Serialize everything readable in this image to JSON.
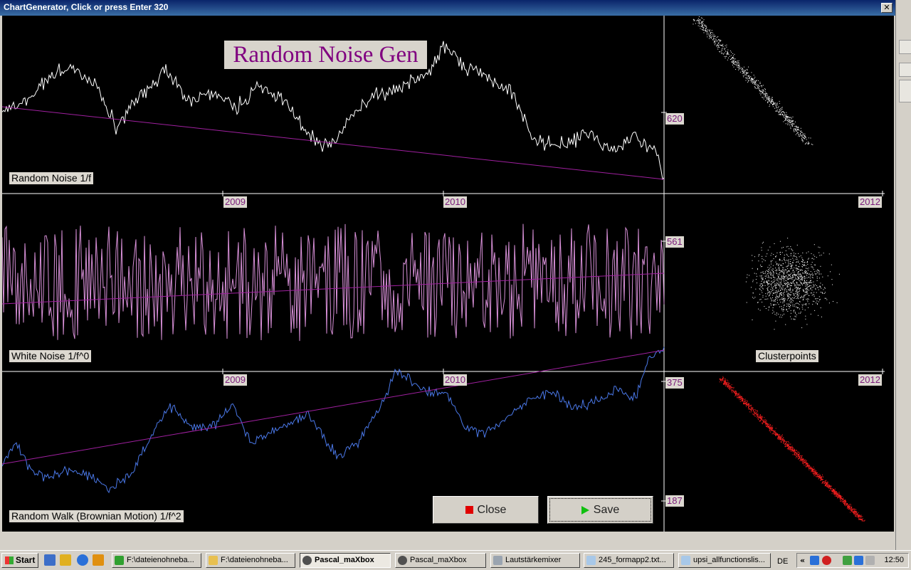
{
  "window": {
    "title": "ChartGenerator, Click or press Enter 320",
    "close_glyph": "✕"
  },
  "chart": {
    "title": "Random Noise Gen",
    "panels": [
      {
        "label": "Random Noise 1/f",
        "label_color": "#ff3b3b",
        "y_tick": "620",
        "x_ticks": [
          "2009",
          "2010",
          "2012"
        ]
      },
      {
        "label": "White Noise 1/f^0",
        "label_color": "#ff3b3b",
        "y_tick": "561",
        "x_ticks": [
          "2009",
          "2010",
          "2012"
        ],
        "side_label": "Clusterpoints",
        "side_label_color": "#2020ff"
      },
      {
        "label": "Random Walk (Brownian Motion) 1/f^2",
        "label_color": "#ff3b3b",
        "y_tick_top": "375",
        "y_tick_bottom": "187"
      }
    ],
    "colors": {
      "pink_noise": "#ffffff",
      "white_noise": "#d890d8",
      "brown_noise": "#4a78e8",
      "trend": "#a020a0",
      "scatter1": "#ffffff",
      "scatter2": "#ffffff",
      "scatter3": "#ff2020"
    }
  },
  "buttons": {
    "close": "Close",
    "save": "Save"
  },
  "taskbar": {
    "start": "Start",
    "items": [
      {
        "label": "F:\\dateienohneba...",
        "icon": "green-arrow-icon",
        "active": false
      },
      {
        "label": "F:\\dateienohneba...",
        "icon": "folder-icon",
        "active": false
      },
      {
        "label": "Pascal_maXbox",
        "icon": "maxbox-icon",
        "active": true
      },
      {
        "label": "Pascal_maXbox",
        "icon": "maxbox-icon",
        "active": false
      },
      {
        "label": "Lautstärkemixer",
        "icon": "speaker-icon",
        "active": false
      },
      {
        "label": "245_formapp2.txt...",
        "icon": "notepad-icon",
        "active": false
      },
      {
        "label": "upsi_allfunctionslis...",
        "icon": "notepad-icon",
        "active": false
      }
    ],
    "language": "DE",
    "time": "12:50"
  }
}
